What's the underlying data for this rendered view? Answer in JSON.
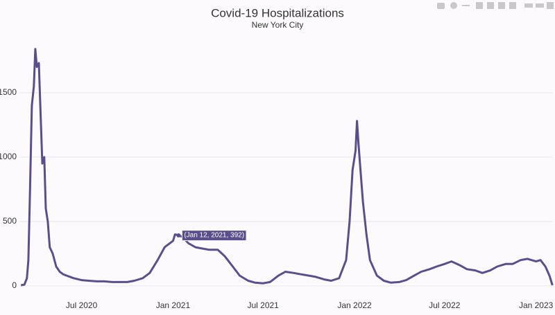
{
  "chart_data": {
    "type": "line",
    "title": "Covid-19 Hospitalizations",
    "subtitle": "New York City",
    "x": [
      "2020-03-01",
      "2020-03-08",
      "2020-03-13",
      "2020-03-16",
      "2020-03-19",
      "2020-03-23",
      "2020-03-27",
      "2020-03-30",
      "2020-04-02",
      "2020-04-06",
      "2020-04-09",
      "2020-04-13",
      "2020-04-17",
      "2020-04-20",
      "2020-04-24",
      "2020-04-28",
      "2020-05-04",
      "2020-05-11",
      "2020-05-18",
      "2020-05-25",
      "2020-06-01",
      "2020-06-15",
      "2020-07-01",
      "2020-07-15",
      "2020-08-01",
      "2020-08-15",
      "2020-09-01",
      "2020-09-15",
      "2020-10-01",
      "2020-10-15",
      "2020-11-01",
      "2020-11-15",
      "2020-12-01",
      "2020-12-15",
      "2021-01-01",
      "2021-01-05",
      "2021-01-12",
      "2021-01-20",
      "2021-02-01",
      "2021-02-15",
      "2021-03-01",
      "2021-03-15",
      "2021-04-01",
      "2021-04-15",
      "2021-05-01",
      "2021-05-15",
      "2021-06-01",
      "2021-06-15",
      "2021-07-01",
      "2021-07-15",
      "2021-08-01",
      "2021-08-15",
      "2021-09-01",
      "2021-09-15",
      "2021-10-01",
      "2021-10-15",
      "2021-11-01",
      "2021-11-15",
      "2021-12-01",
      "2021-12-15",
      "2021-12-22",
      "2021-12-28",
      "2022-01-03",
      "2022-01-06",
      "2022-01-09",
      "2022-01-13",
      "2022-01-18",
      "2022-01-25",
      "2022-02-01",
      "2022-02-15",
      "2022-03-01",
      "2022-03-15",
      "2022-04-01",
      "2022-04-15",
      "2022-05-01",
      "2022-05-15",
      "2022-06-01",
      "2022-06-15",
      "2022-07-01",
      "2022-07-15",
      "2022-08-01",
      "2022-08-15",
      "2022-09-01",
      "2022-09-15",
      "2022-10-01",
      "2022-10-15",
      "2022-11-01",
      "2022-11-15",
      "2022-12-01",
      "2022-12-15",
      "2023-01-01",
      "2023-01-10",
      "2023-01-20",
      "2023-01-28",
      "2023-02-03"
    ],
    "series": [
      {
        "name": "Hospitalizations",
        "color": "#5b4e8c",
        "values": [
          5,
          10,
          60,
          200,
          700,
          1400,
          1550,
          1840,
          1700,
          1730,
          1400,
          950,
          1000,
          600,
          500,
          300,
          250,
          150,
          110,
          90,
          80,
          60,
          45,
          40,
          35,
          35,
          30,
          30,
          30,
          40,
          60,
          100,
          200,
          300,
          350,
          400,
          392,
          380,
          330,
          300,
          290,
          280,
          280,
          230,
          150,
          80,
          40,
          25,
          20,
          30,
          80,
          110,
          100,
          90,
          80,
          70,
          50,
          40,
          60,
          200,
          500,
          900,
          1050,
          1280,
          1100,
          900,
          650,
          400,
          200,
          80,
          40,
          25,
          30,
          45,
          80,
          110,
          130,
          150,
          170,
          190,
          160,
          130,
          120,
          100,
          120,
          150,
          170,
          170,
          200,
          210,
          190,
          200,
          150,
          80,
          5
        ]
      }
    ],
    "xlim": [
      "2020-02-27",
      "2023-02-04"
    ],
    "xticks": [
      {
        "value": "2020-07-01",
        "label": "Jul 2020"
      },
      {
        "value": "2021-01-01",
        "label": "Jan 2021"
      },
      {
        "value": "2021-07-01",
        "label": "Jul 2021"
      },
      {
        "value": "2022-01-01",
        "label": "Jan 2022"
      },
      {
        "value": "2022-07-01",
        "label": "Jul 2022"
      },
      {
        "value": "2023-01-01",
        "label": "Jan 2023"
      }
    ],
    "ylim": [
      -38,
      1978
    ],
    "yticks": [
      0,
      500,
      1000,
      1500
    ],
    "grid": true,
    "hover": {
      "x": "2021-01-12",
      "y": 392,
      "label": "(Jan 12, 2021, 392)"
    }
  }
}
